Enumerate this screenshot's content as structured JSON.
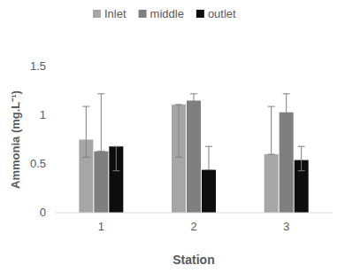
{
  "chart_data": {
    "type": "bar",
    "categories": [
      "1",
      "2",
      "3"
    ],
    "x_label": "Station",
    "y_label": "Ammonia (mg.L⁻¹)",
    "ylim": [
      0,
      1.5
    ],
    "yticks": [
      0,
      0.5,
      1,
      1.5
    ],
    "grid": false,
    "legend": "top",
    "series": [
      {
        "name": "Inlet",
        "color": "#a6a6a6",
        "values": [
          0.75,
          1.11,
          0.6
        ],
        "error_minus": [
          0.18,
          0.54,
          0
        ],
        "error_plus": [
          0.34,
          0,
          0.49
        ]
      },
      {
        "name": "middle",
        "color": "#7f7f7f",
        "values": [
          0.63,
          1.15,
          1.03
        ],
        "error_minus": [
          0,
          0.48,
          0.36
        ],
        "error_plus": [
          0.59,
          0.07,
          0.19
        ]
      },
      {
        "name": "outlet",
        "color": "#0d0d0d",
        "values": [
          0.68,
          0.44,
          0.54
        ],
        "error_minus": [
          0.25,
          0,
          0.11
        ],
        "error_plus": [
          0,
          0.24,
          0.14
        ]
      }
    ]
  }
}
